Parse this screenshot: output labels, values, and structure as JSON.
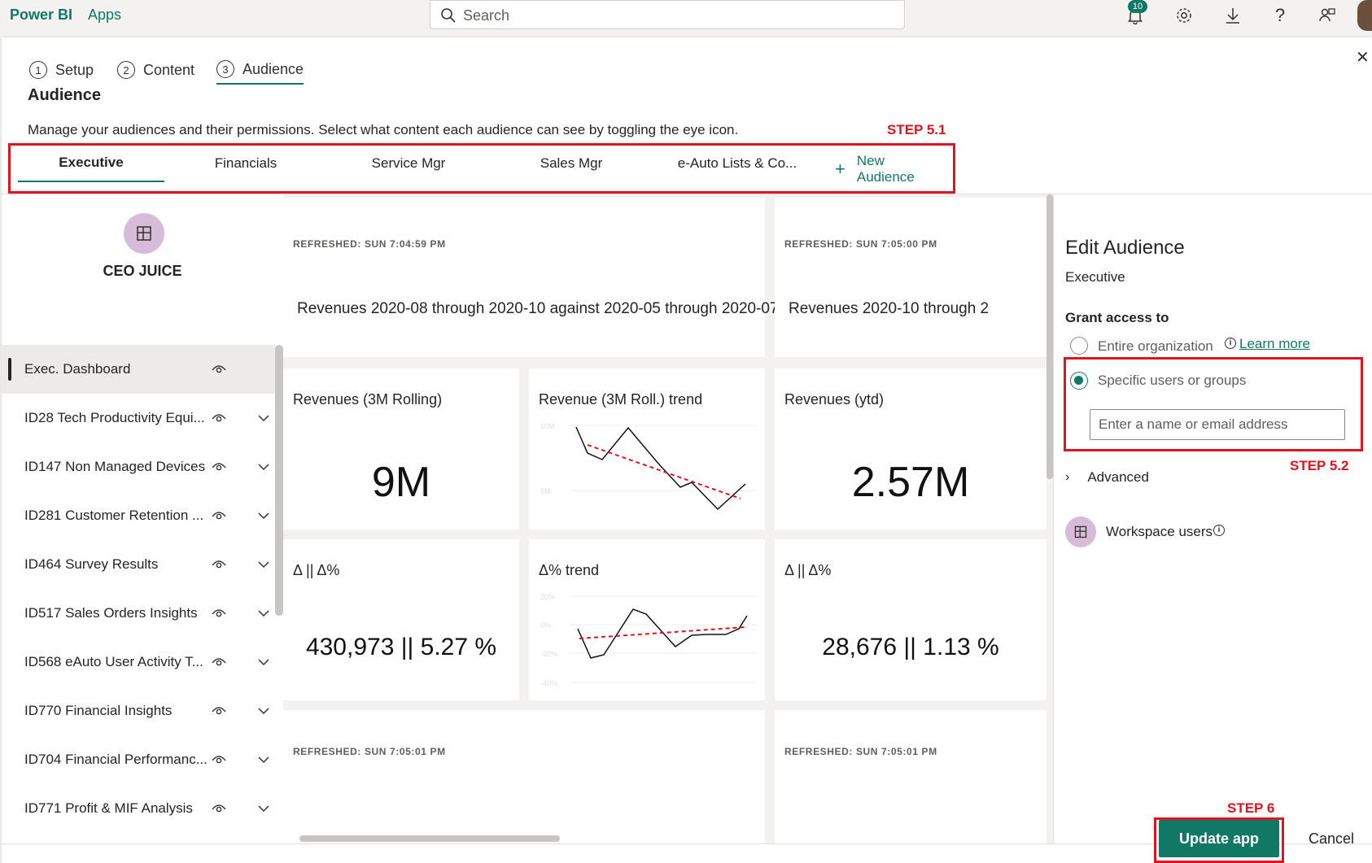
{
  "topbar": {
    "brand": "Power BI",
    "apps": "Apps",
    "search_placeholder": "Search",
    "notification_count": "10",
    "icons": [
      "bell-icon",
      "gear-icon",
      "download-icon",
      "help-icon",
      "share-people-icon"
    ]
  },
  "wizard": {
    "steps": [
      {
        "num": "1",
        "label": "Setup"
      },
      {
        "num": "2",
        "label": "Content"
      },
      {
        "num": "3",
        "label": "Audience"
      }
    ],
    "active_step": 2
  },
  "page": {
    "title": "Audience",
    "description": "Manage your audiences and their permissions. Select what content each audience can see by toggling the eye icon."
  },
  "annotations": {
    "step_5_1": "STEP 5.1",
    "step_5_2": "STEP 5.2",
    "step_6": "STEP 6"
  },
  "audiences": {
    "tabs": [
      "Executive",
      "Financials",
      "Service Mgr",
      "Sales Mgr",
      "e-Auto Lists & Co..."
    ],
    "active": 0,
    "new_label": "New Audience"
  },
  "workspace": {
    "name": "CEO JUICE"
  },
  "nav_items": [
    {
      "label": "Exec. Dashboard",
      "selected": true,
      "expandable": false
    },
    {
      "label": "ID28 Tech Productivity Equi...",
      "selected": false,
      "expandable": true
    },
    {
      "label": "ID147 Non Managed Devices",
      "selected": false,
      "expandable": true
    },
    {
      "label": "ID281 Customer Retention ...",
      "selected": false,
      "expandable": true
    },
    {
      "label": "ID464 Survey Results",
      "selected": false,
      "expandable": true
    },
    {
      "label": "ID517 Sales Orders Insights",
      "selected": false,
      "expandable": true
    },
    {
      "label": "ID568 eAuto User Activity T...",
      "selected": false,
      "expandable": true
    },
    {
      "label": "ID770 Financial Insights",
      "selected": false,
      "expandable": true
    },
    {
      "label": "ID704 Financial Performanc...",
      "selected": false,
      "expandable": true
    },
    {
      "label": "ID771 Profit & MIF Analysis",
      "selected": false,
      "expandable": true
    }
  ],
  "tiles": {
    "t1": {
      "refreshed": "REFRESHED: SUN 7:04:59 PM",
      "text": "Revenues 2020-08 through 2020-10 against 2020-05 through 2020-07"
    },
    "t2": {
      "refreshed": "REFRESHED: SUN 7:05:00 PM",
      "text": "Revenues 2020-10 through 2"
    },
    "rev3m": {
      "title": "Revenues (3M Rolling)",
      "value": "9M"
    },
    "revtrend": {
      "title": "Revenue (3M Roll.) trend",
      "axis": [
        "10M",
        "5M"
      ]
    },
    "revytd": {
      "title": "Revenues (ytd)",
      "value": "2.57M"
    },
    "delta1": {
      "title": "Δ || Δ%",
      "value": "430,973 || 5.27 %"
    },
    "deltatrend": {
      "title": "Δ% trend",
      "axis": [
        "20%",
        "0%",
        "-20%",
        "-40%"
      ]
    },
    "delta2": {
      "title": "Δ || Δ%",
      "value": "28,676 || 1.13 %"
    },
    "t3": {
      "refreshed": "REFRESHED: SUN 7:05:01 PM"
    },
    "t4": {
      "refreshed": "REFRESHED: SUN 7:05:01 PM"
    }
  },
  "edit_audience": {
    "title": "Edit Audience",
    "audience_name": "Executive",
    "grant_label": "Grant access to",
    "option_org": "Entire organization",
    "learn_more": "Learn more",
    "option_specific": "Specific users or groups",
    "selected_option": "specific",
    "email_placeholder": "Enter a name or email address",
    "advanced": "Advanced",
    "workspace_users": "Workspace users"
  },
  "footer": {
    "update": "Update app",
    "cancel": "Cancel"
  },
  "colors": {
    "accent": "#117865",
    "annotation_red": "#e0141e",
    "workspace_icon": "#d7bbd9"
  }
}
